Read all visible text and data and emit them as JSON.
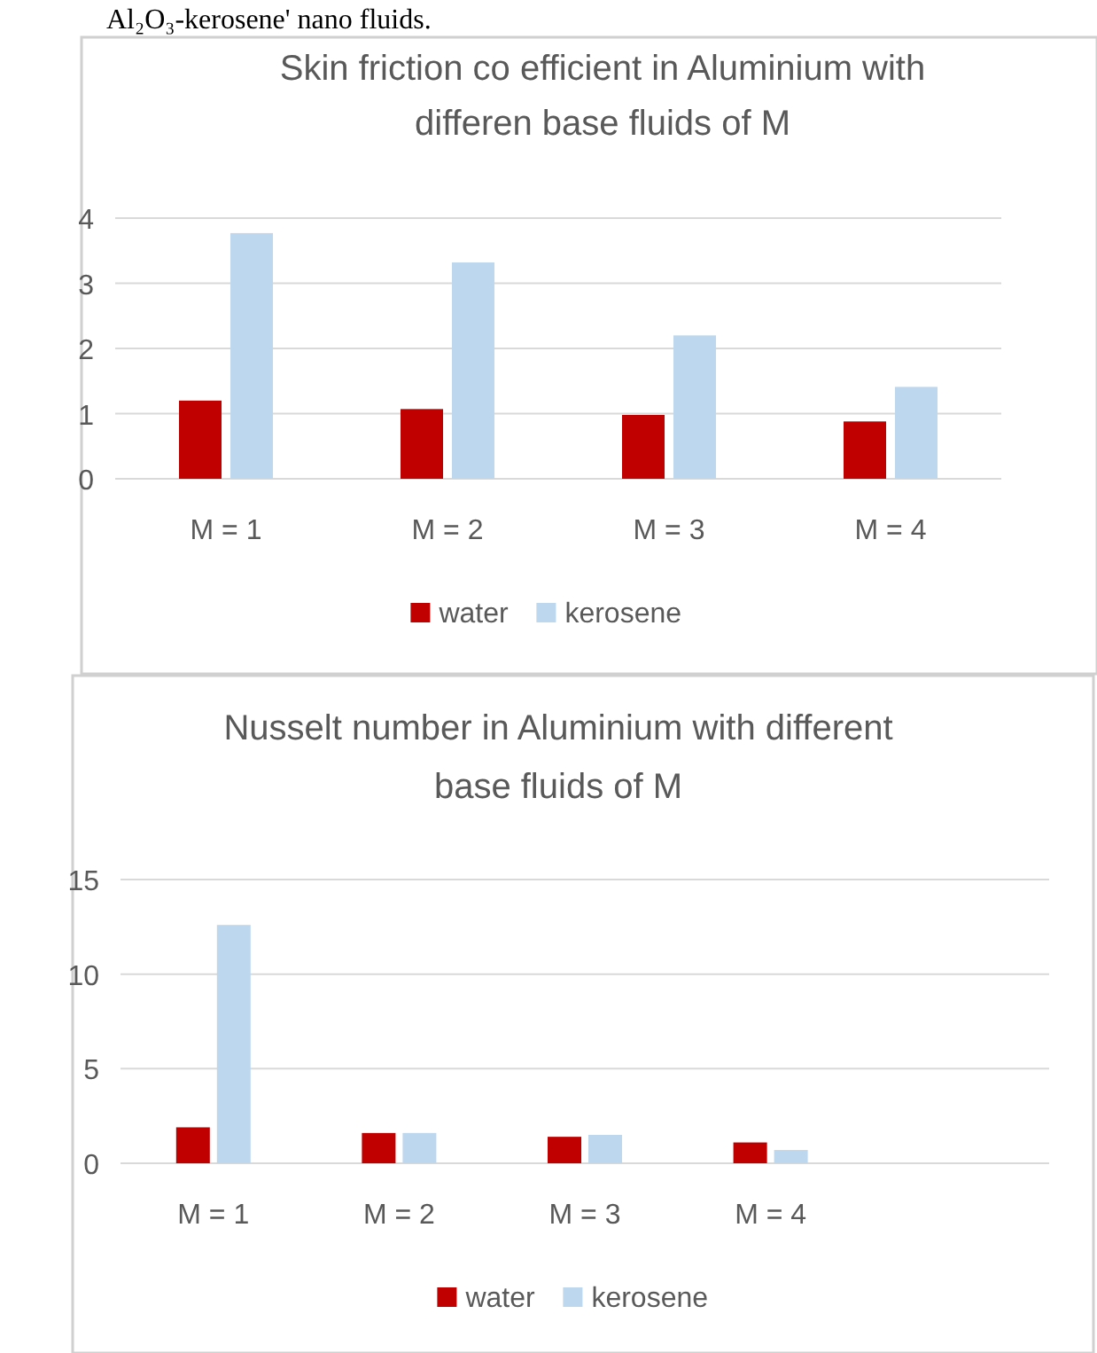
{
  "chart_data": [
    {
      "type": "bar",
      "title": "Skin friction co efficient in Aluminium with differen base fluids of M",
      "annotations": [
        "Al₂O₃-kerosene' nano fluids."
      ],
      "categories": [
        "M = 1",
        "M = 2",
        "M = 3",
        "M = 4"
      ],
      "series": [
        {
          "name": "water",
          "color": "#c00000",
          "values": [
            1.2,
            1.07,
            0.98,
            0.88
          ]
        },
        {
          "name": "kerosene",
          "color": "#bdd7ee",
          "values": [
            3.77,
            3.32,
            2.2,
            1.41
          ]
        }
      ],
      "ylim": [
        0,
        4
      ],
      "yticks": [
        0,
        1,
        2,
        3,
        4
      ],
      "grid": "y",
      "legend": "bottom"
    },
    {
      "type": "bar",
      "title": "Nusselt number in Aluminium with different base fluids of M",
      "categories": [
        "M = 1",
        "M = 2",
        "M = 3",
        "M = 4",
        null
      ],
      "series": [
        {
          "name": "water",
          "color": "#c00000",
          "values": [
            1.9,
            1.6,
            1.4,
            1.1,
            null
          ]
        },
        {
          "name": "kerosene",
          "color": "#bdd7ee",
          "values": [
            12.6,
            1.6,
            1.5,
            0.7,
            null
          ]
        }
      ],
      "ylim": [
        0,
        15
      ],
      "yticks": [
        0,
        5,
        10,
        15
      ],
      "grid": "y",
      "legend": "bottom"
    }
  ]
}
